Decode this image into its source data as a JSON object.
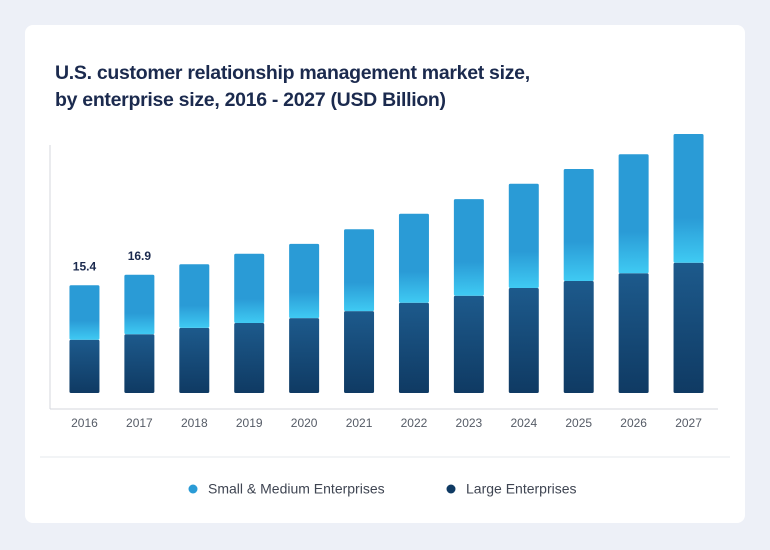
{
  "chart_data": {
    "type": "stacked-bar",
    "title": [
      "U.S. customer relationship management market size,",
      "by enterprise size, 2016 - 2027 (USD Billion)"
    ],
    "categories": [
      "2016",
      "2017",
      "2018",
      "2019",
      "2020",
      "2021",
      "2022",
      "2023",
      "2024",
      "2025",
      "2026",
      "2027"
    ],
    "series": [
      {
        "name": "Large Enterprises",
        "color": "#0f3a63",
        "values": [
          7.6,
          8.4,
          9.3,
          10.0,
          10.7,
          11.7,
          12.9,
          13.9,
          15.0,
          16.0,
          17.1,
          18.6
        ]
      },
      {
        "name": "Small & Medium Enterprises",
        "color": "#2a9bd6",
        "values": [
          7.8,
          8.5,
          9.1,
          9.9,
          10.6,
          11.7,
          12.7,
          13.8,
          14.9,
          16.0,
          17.0,
          18.4
        ]
      }
    ],
    "totals": [
      15.4,
      16.9,
      null,
      null,
      null,
      null,
      null,
      null,
      null,
      null,
      null,
      null
    ]
  }
}
